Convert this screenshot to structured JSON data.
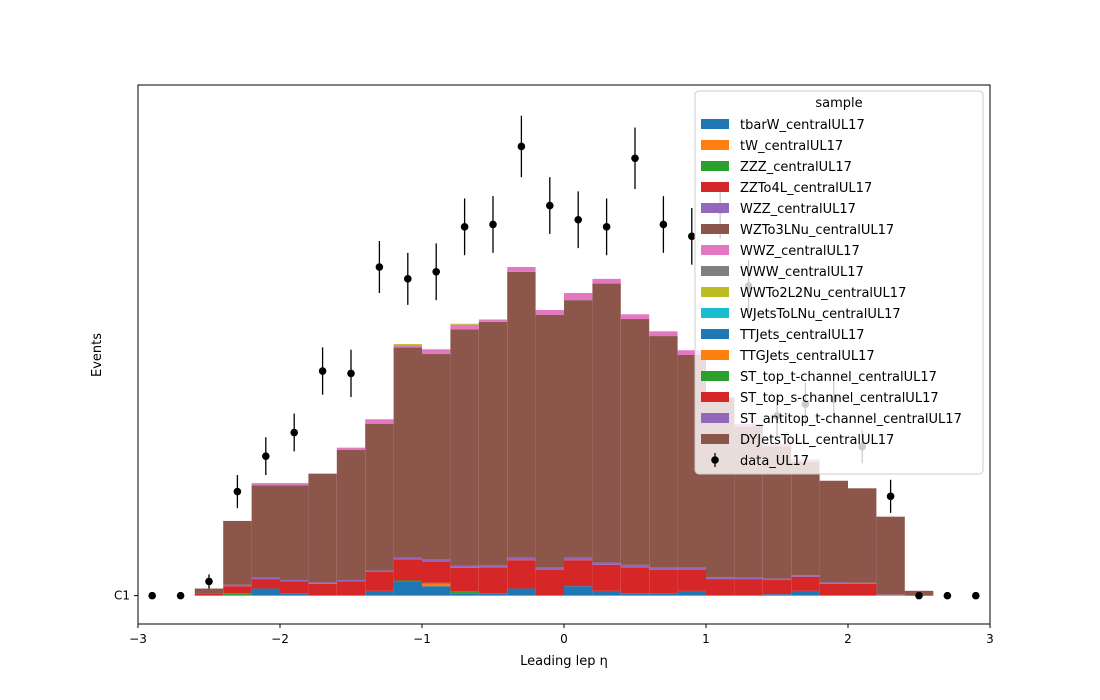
{
  "chart_data": {
    "type": "bar",
    "stacked": true,
    "xlabel": "Leading lep η",
    "ylabel": "Events",
    "xlim": [
      -3,
      3
    ],
    "ylim": [
      -0.6,
      10.8
    ],
    "x_ticks": [
      "−3",
      "−2",
      "−1",
      "0",
      "1",
      "2",
      "3"
    ],
    "y_ticks": [
      "C1"
    ],
    "legend": {
      "title": "sample",
      "position": "top-right"
    },
    "bin_edges": [
      -2.6,
      -2.4,
      -2.2,
      -2.0,
      -1.8,
      -1.6,
      -1.4,
      -1.2,
      -1.0,
      -0.8,
      -0.6,
      -0.4,
      -0.2,
      0.0,
      0.2,
      0.4,
      0.6,
      0.8,
      1.0,
      1.2,
      1.4,
      1.6,
      1.8,
      2.0,
      2.2,
      2.4,
      2.6
    ],
    "series": [
      {
        "name": "tbarW_centralUL17",
        "color": "#1f77b4",
        "values": [
          0,
          0,
          0.15,
          0.05,
          0,
          0,
          0.1,
          0.3,
          0.2,
          0.05,
          0.05,
          0.15,
          0,
          0.2,
          0.1,
          0.05,
          0.05,
          0.1,
          0,
          0,
          0.03,
          0.1,
          0,
          0,
          0,
          0
        ]
      },
      {
        "name": "tW_centralUL17",
        "color": "#ff7f0e",
        "values": [
          0,
          0,
          0,
          0,
          0,
          0,
          0,
          0,
          0.05,
          0,
          0,
          0,
          0,
          0,
          0,
          0,
          0,
          0,
          0,
          0,
          0,
          0,
          0,
          0,
          0,
          0
        ]
      },
      {
        "name": "ZZZ_centralUL17",
        "color": "#2ca02c",
        "values": [
          0,
          0.05,
          0,
          0,
          0,
          0,
          0,
          0.02,
          0.02,
          0.04,
          0,
          0,
          0,
          0,
          0,
          0,
          0,
          0,
          0,
          0,
          0,
          0,
          0,
          0,
          0,
          0
        ]
      },
      {
        "name": "ZZTo4L_centralUL17",
        "color": "#d62728",
        "values": [
          0.05,
          0.15,
          0.2,
          0.25,
          0.25,
          0.3,
          0.4,
          0.45,
          0.45,
          0.5,
          0.55,
          0.6,
          0.55,
          0.55,
          0.55,
          0.55,
          0.5,
          0.45,
          0.35,
          0.35,
          0.3,
          0.3,
          0.25,
          0.25,
          0,
          0.1
        ]
      },
      {
        "name": "WZZ_centralUL17",
        "color": "#9467bd",
        "values": [
          0,
          0.03,
          0.03,
          0.03,
          0.03,
          0.03,
          0.03,
          0.03,
          0.04,
          0.04,
          0.04,
          0.05,
          0.04,
          0.05,
          0.05,
          0.05,
          0.04,
          0.04,
          0.04,
          0.03,
          0.03,
          0.03,
          0.03,
          0.02,
          0.02,
          0
        ]
      },
      {
        "name": "WZTo3LNu_centralUL17",
        "color": "#8c564b",
        "values": [
          0.1,
          1.35,
          1.95,
          2.0,
          2.3,
          2.75,
          3.1,
          4.45,
          4.35,
          5.0,
          5.15,
          6.05,
          5.35,
          5.45,
          5.9,
          5.2,
          4.9,
          4.5,
          3.8,
          3.2,
          2.8,
          2.4,
          2.15,
          2.0,
          1.65,
          -0.1
        ]
      },
      {
        "name": "WWZ_centralUL17",
        "color": "#e377c2",
        "values": [
          0,
          0,
          0.05,
          0.05,
          0,
          0.05,
          0.1,
          0.05,
          0.1,
          0.1,
          0.05,
          0.1,
          0.1,
          0.15,
          0.1,
          0.1,
          0.1,
          0.1,
          0,
          0.05,
          0.05,
          0.05,
          0,
          0,
          0,
          0
        ]
      },
      {
        "name": "WWW_centralUL17",
        "color": "#7f7f7f",
        "values": [
          0,
          0,
          0,
          0,
          0,
          0,
          0,
          0,
          0,
          0,
          0,
          0,
          0,
          0,
          0,
          0,
          0,
          0,
          0,
          0,
          0,
          0,
          0,
          0,
          0,
          0
        ]
      },
      {
        "name": "WWTo2L2Nu_centralUL17",
        "color": "#bcbd22",
        "values": [
          0,
          0,
          0,
          0,
          0,
          0,
          0,
          0.02,
          0,
          0.02,
          0,
          0,
          0,
          0,
          0,
          0,
          0,
          0,
          0,
          0,
          0,
          0,
          0,
          0,
          0,
          0
        ]
      },
      {
        "name": "WJetsToLNu_centralUL17",
        "color": "#17becf",
        "values": [
          0,
          0,
          0,
          0,
          0,
          0,
          0,
          0,
          0,
          0,
          0,
          0,
          0,
          0,
          0,
          0,
          0,
          0,
          0,
          0,
          0,
          0,
          0,
          0,
          0,
          0
        ]
      },
      {
        "name": "TTJets_centralUL17",
        "color": "#1f77b4",
        "values": [
          0,
          0,
          0,
          0,
          0,
          0,
          0,
          0,
          0,
          0,
          0,
          0,
          0,
          0,
          0,
          0,
          0,
          0,
          0,
          0,
          0,
          0,
          0,
          0,
          0,
          0
        ]
      },
      {
        "name": "TTGJets_centralUL17",
        "color": "#ff7f0e",
        "values": [
          0,
          0,
          0,
          0,
          0,
          0,
          0,
          0,
          0,
          0,
          0,
          0,
          0,
          0,
          0,
          0,
          0,
          0,
          0,
          0,
          0,
          0,
          0,
          0,
          0,
          0
        ]
      },
      {
        "name": "ST_top_t-channel_centralUL17",
        "color": "#2ca02c",
        "values": [
          0,
          0,
          0,
          0,
          0,
          0,
          0,
          0,
          0,
          0,
          0,
          0,
          0,
          0,
          0,
          0,
          0,
          0,
          0,
          0,
          0,
          0,
          0,
          0,
          0,
          0
        ]
      },
      {
        "name": "ST_top_s-channel_centralUL17",
        "color": "#d62728",
        "values": [
          0,
          0,
          0,
          0,
          0,
          0,
          0,
          0,
          0,
          0,
          0,
          0,
          0,
          0,
          0,
          0,
          0,
          0,
          0,
          0,
          0,
          0,
          0,
          0,
          0,
          0
        ]
      },
      {
        "name": "ST_antitop_t-channel_centralUL17",
        "color": "#9467bd",
        "values": [
          0,
          0,
          0,
          0,
          0,
          0,
          0,
          0,
          0,
          0,
          0,
          0,
          0,
          0,
          0,
          0,
          0,
          0,
          0,
          0,
          0,
          0,
          0,
          0,
          0,
          0
        ]
      },
      {
        "name": "DYJetsToLL_centralUL17",
        "color": "#8c564b",
        "values": [
          0,
          0,
          0,
          0,
          0,
          0,
          0,
          0,
          0,
          0,
          0,
          0,
          0,
          0,
          0,
          0,
          0,
          0,
          0,
          0,
          0,
          0,
          0,
          0,
          0,
          0
        ]
      }
    ],
    "data": {
      "name": "data_UL17",
      "color": "#000000",
      "x": [
        -2.9,
        -2.7,
        -2.5,
        -2.3,
        -2.1,
        -1.9,
        -1.7,
        -1.5,
        -1.3,
        -1.1,
        -0.9,
        -0.7,
        -0.5,
        -0.3,
        -0.1,
        0.1,
        0.3,
        0.5,
        0.7,
        0.9,
        1.1,
        1.3,
        1.5,
        1.7,
        1.9,
        2.1,
        2.3,
        2.5,
        2.7,
        2.9
      ],
      "y": [
        0,
        0,
        0.3,
        2.2,
        2.95,
        3.45,
        4.75,
        4.7,
        6.95,
        6.7,
        6.85,
        7.8,
        7.85,
        9.5,
        8.25,
        7.95,
        7.8,
        9.25,
        7.85,
        7.6,
        8.15,
        6.55,
        3.8,
        4.05,
        4.15,
        3.15,
        2.1,
        0,
        0,
        0
      ],
      "yerr": [
        0,
        0,
        0.15,
        0.35,
        0.4,
        0.4,
        0.5,
        0.5,
        0.55,
        0.55,
        0.6,
        0.6,
        0.6,
        0.65,
        0.6,
        0.6,
        0.6,
        0.65,
        0.6,
        0.6,
        0.6,
        0.55,
        0.45,
        0.45,
        0.45,
        0.35,
        0.35,
        0,
        0,
        0
      ]
    }
  }
}
